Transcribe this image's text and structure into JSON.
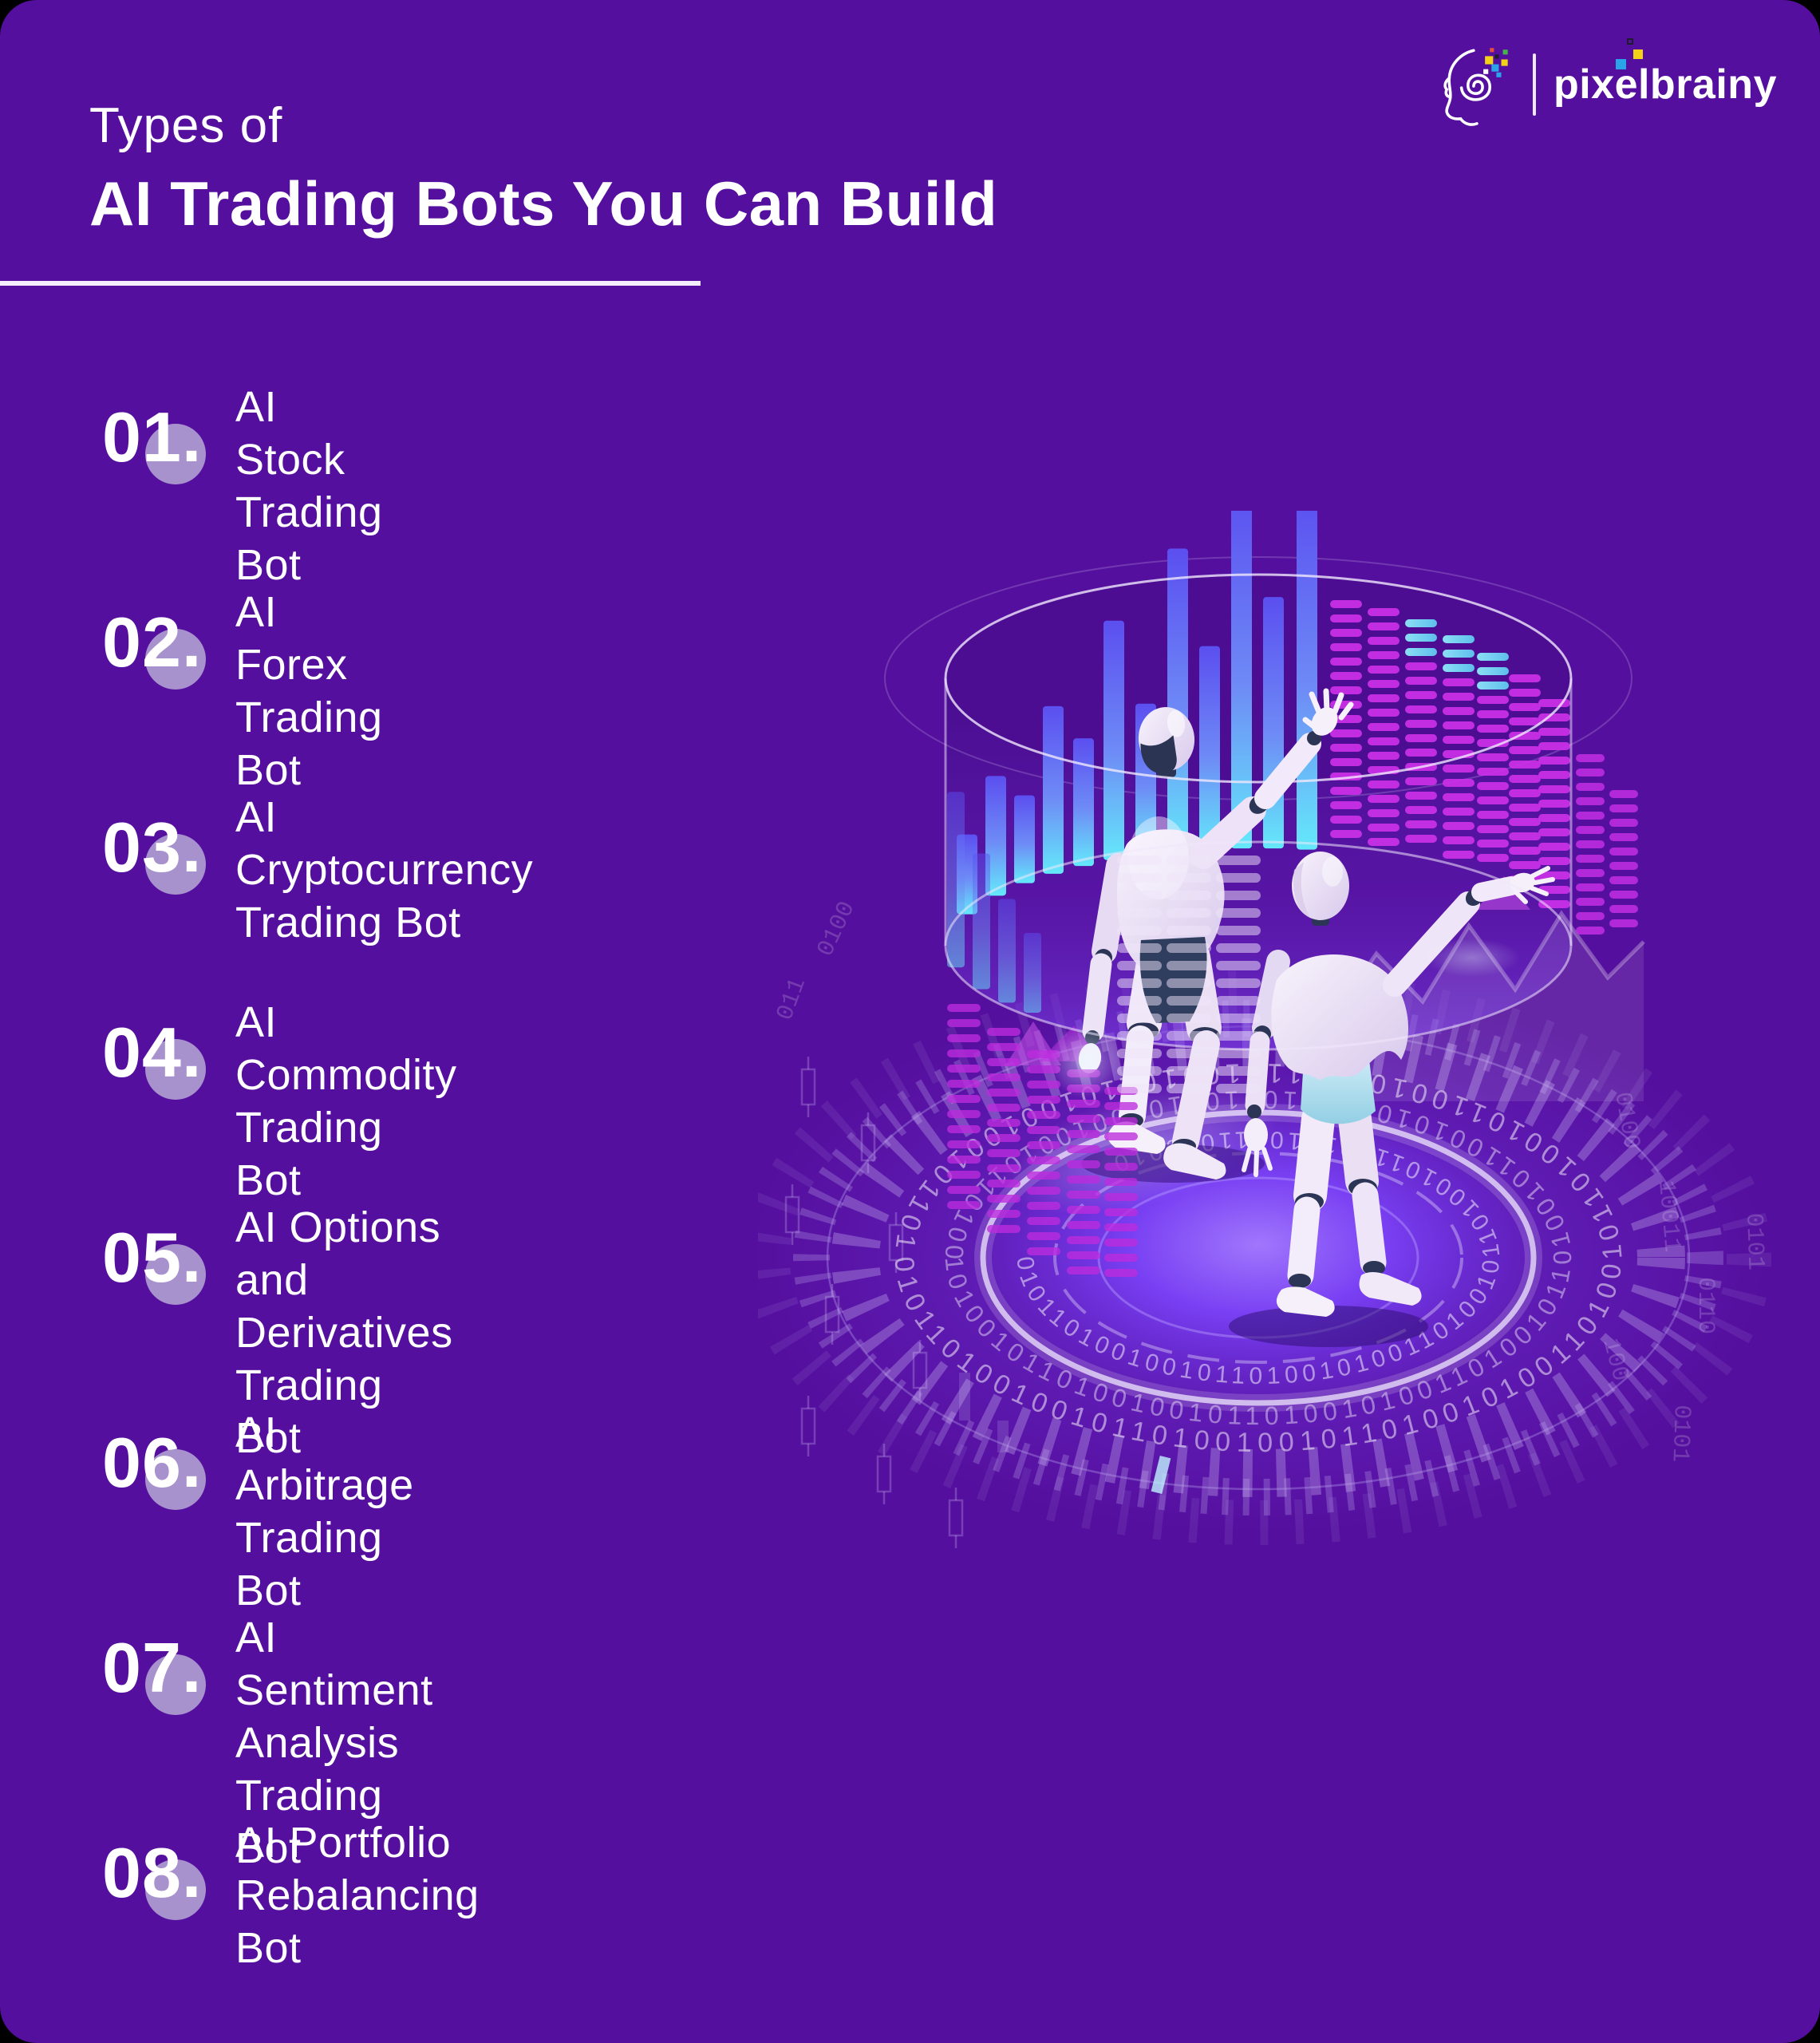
{
  "colors": {
    "background": "#000000",
    "card": "#550F9E",
    "number_circle": "#A792CE",
    "text": "#FFFFFF",
    "bar_gradient_top": "#5B4FF0",
    "bar_gradient_bottom": "#64E9FA",
    "stripe_magenta": "#C82FE6",
    "stripe_cyan": "#8FE9FA",
    "platform_glow": "#7B43F8",
    "robot_body": "#F1E9F8",
    "robot_joint": "#2C3555",
    "robot_teal": "#BCE3F1",
    "logo_blue": "#2BA3E8",
    "logo_yellow": "#F3D118"
  },
  "header": {
    "title_line1": "Types of",
    "title_line2": "AI Trading Bots You Can Build"
  },
  "logo": {
    "brand": "pixelbrainy"
  },
  "list": {
    "items": [
      {
        "number": "01.",
        "line1": "AI Stock",
        "line2": "Trading Bot"
      },
      {
        "number": "02.",
        "line1": "AI Forex",
        "line2": "Trading Bot"
      },
      {
        "number": "03.",
        "line1": "AI Cryptocurrency",
        "line2": "Trading Bot"
      },
      {
        "number": "04.",
        "line1": "AI Commodity",
        "line2": "Trading Bot"
      },
      {
        "number": "05.",
        "line1": "AI Options and",
        "line2": "Derivatives Trading Bot"
      },
      {
        "number": "06.",
        "line1": "AI Arbitrage",
        "line2": "Trading Bot"
      },
      {
        "number": "07.",
        "line1": "AI Sentiment Analysis",
        "line2": "Trading Bot"
      },
      {
        "number": "08.",
        "line1": "AI Portfolio",
        "line2": "Rebalancing Bot"
      }
    ]
  },
  "illustration": {
    "binary_ring_outer": "010110100100101101001001011010010100110100101101001011001010011010010110100100101101001011010",
    "binary_ring_middle": "1010010110100100101101001010011010010110100101100101001101001011010010010110100101",
    "binary_ring_inner": "0101101001001011010010100110100101101001011001010011010010",
    "binary_scatter_1": "0100",
    "binary_scatter_2": "10011",
    "binary_scatter_3": "0110",
    "binary_scatter_4": "100",
    "binary_scatter_5": "011",
    "binary_scatter_6": "0101"
  }
}
